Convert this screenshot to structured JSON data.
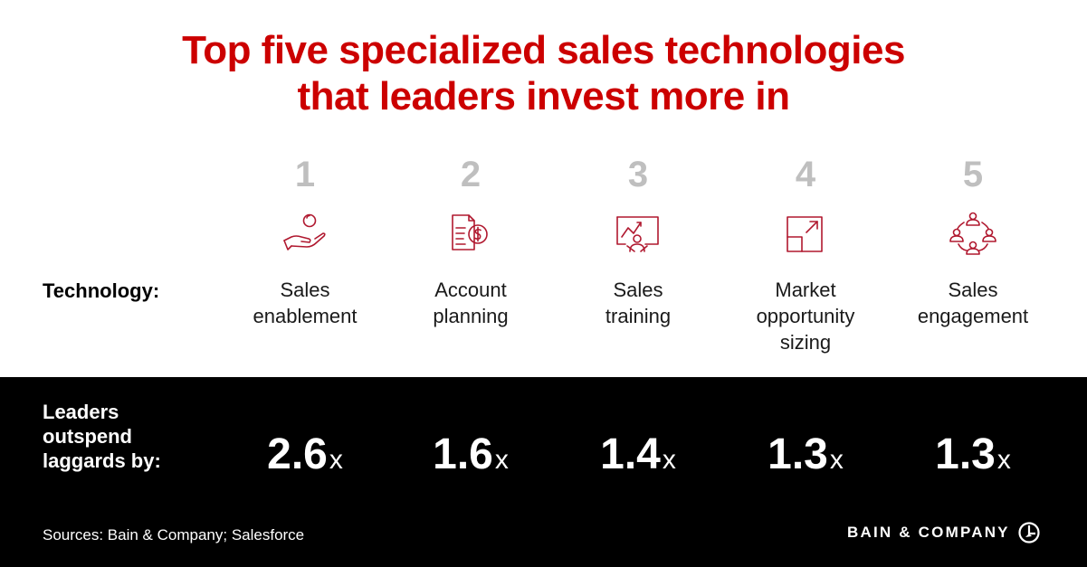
{
  "title_lines": [
    "Top five specialized sales technologies",
    "that leaders invest more in"
  ],
  "row_labels": {
    "technology": "Technology:",
    "outspend_lines": [
      "Leaders",
      "outspend",
      "laggards by:"
    ]
  },
  "chart_data": {
    "type": "table",
    "title": "Top five specialized sales technologies that leaders invest more in",
    "columns": [
      {
        "rank": "1",
        "name_lines": [
          "Sales",
          "enablement"
        ],
        "icon": "hand-coin-icon",
        "value": 2.6,
        "value_text": "2.6",
        "unit": "x"
      },
      {
        "rank": "2",
        "name_lines": [
          "Account",
          "planning"
        ],
        "icon": "document-dollar-icon",
        "value": 1.6,
        "value_text": "1.6",
        "unit": "x"
      },
      {
        "rank": "3",
        "name_lines": [
          "Sales",
          "training"
        ],
        "icon": "presentation-icon",
        "value": 1.4,
        "value_text": "1.4",
        "unit": "x"
      },
      {
        "rank": "4",
        "name_lines": [
          "Market",
          "opportunity",
          "sizing"
        ],
        "icon": "expand-arrow-icon",
        "value": 1.3,
        "value_text": "1.3",
        "unit": "x"
      },
      {
        "rank": "5",
        "name_lines": [
          "Sales",
          "engagement"
        ],
        "icon": "people-network-icon",
        "value": 1.3,
        "value_text": "1.3",
        "unit": "x"
      }
    ]
  },
  "footer": {
    "source": "Sources: Bain & Company; Salesforce",
    "brand": "BAIN & COMPANY"
  },
  "colors": {
    "title": "#cc0000",
    "icon": "#b0182f",
    "rank": "#bfbfbf",
    "band": "#000000"
  }
}
